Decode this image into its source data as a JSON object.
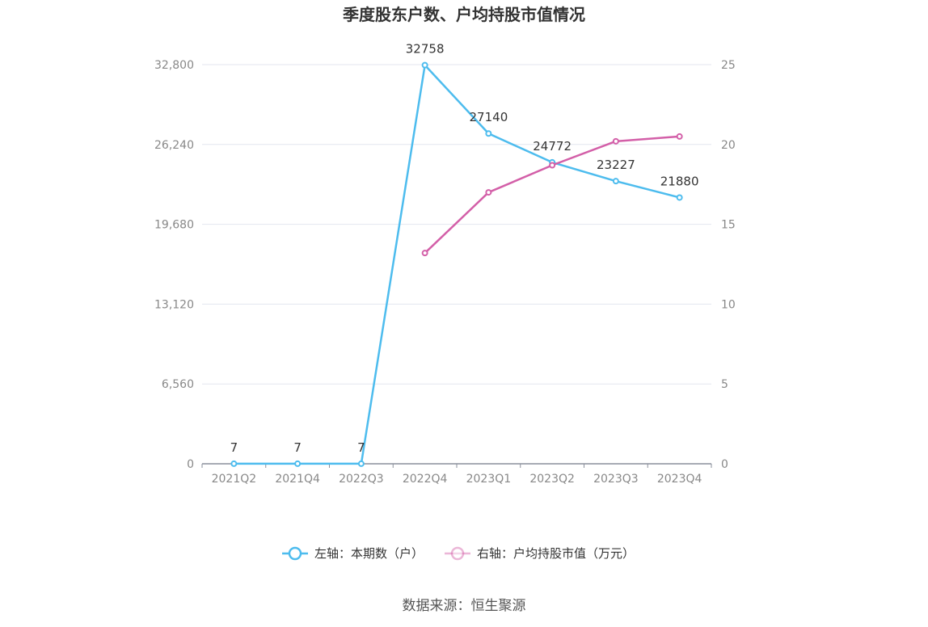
{
  "chart_data": {
    "type": "line",
    "title": "季度股东户数、户均持股市值情况",
    "categories": [
      "2021Q2",
      "2021Q4",
      "2022Q3",
      "2022Q4",
      "2023Q1",
      "2023Q2",
      "2023Q3",
      "2023Q4"
    ],
    "left_axis": {
      "ylim": [
        0,
        32800
      ],
      "ticks": [
        "0",
        "6,560",
        "13,120",
        "19,680",
        "26,240",
        "32,800"
      ]
    },
    "right_axis": {
      "ylim": [
        0,
        25
      ],
      "ticks": [
        "0",
        "5",
        "10",
        "15",
        "20",
        "25"
      ]
    },
    "series": [
      {
        "name": "左轴：本期数（户）",
        "axis": "left",
        "color": "#4dbcee",
        "values": [
          7,
          7,
          7,
          32758,
          27140,
          24772,
          23227,
          21880
        ],
        "labels": [
          "7",
          "7",
          "7",
          "32758",
          "27140",
          "24772",
          "23227",
          "21880"
        ]
      },
      {
        "name": "右轴：户均持股市值（万元）",
        "axis": "right",
        "color": "#d35fa8",
        "values": [
          null,
          null,
          null,
          13.2,
          17.0,
          18.7,
          20.2,
          20.5
        ]
      }
    ],
    "grid": true,
    "legend_position": "bottom-center"
  },
  "source": "数据来源：恒生聚源"
}
